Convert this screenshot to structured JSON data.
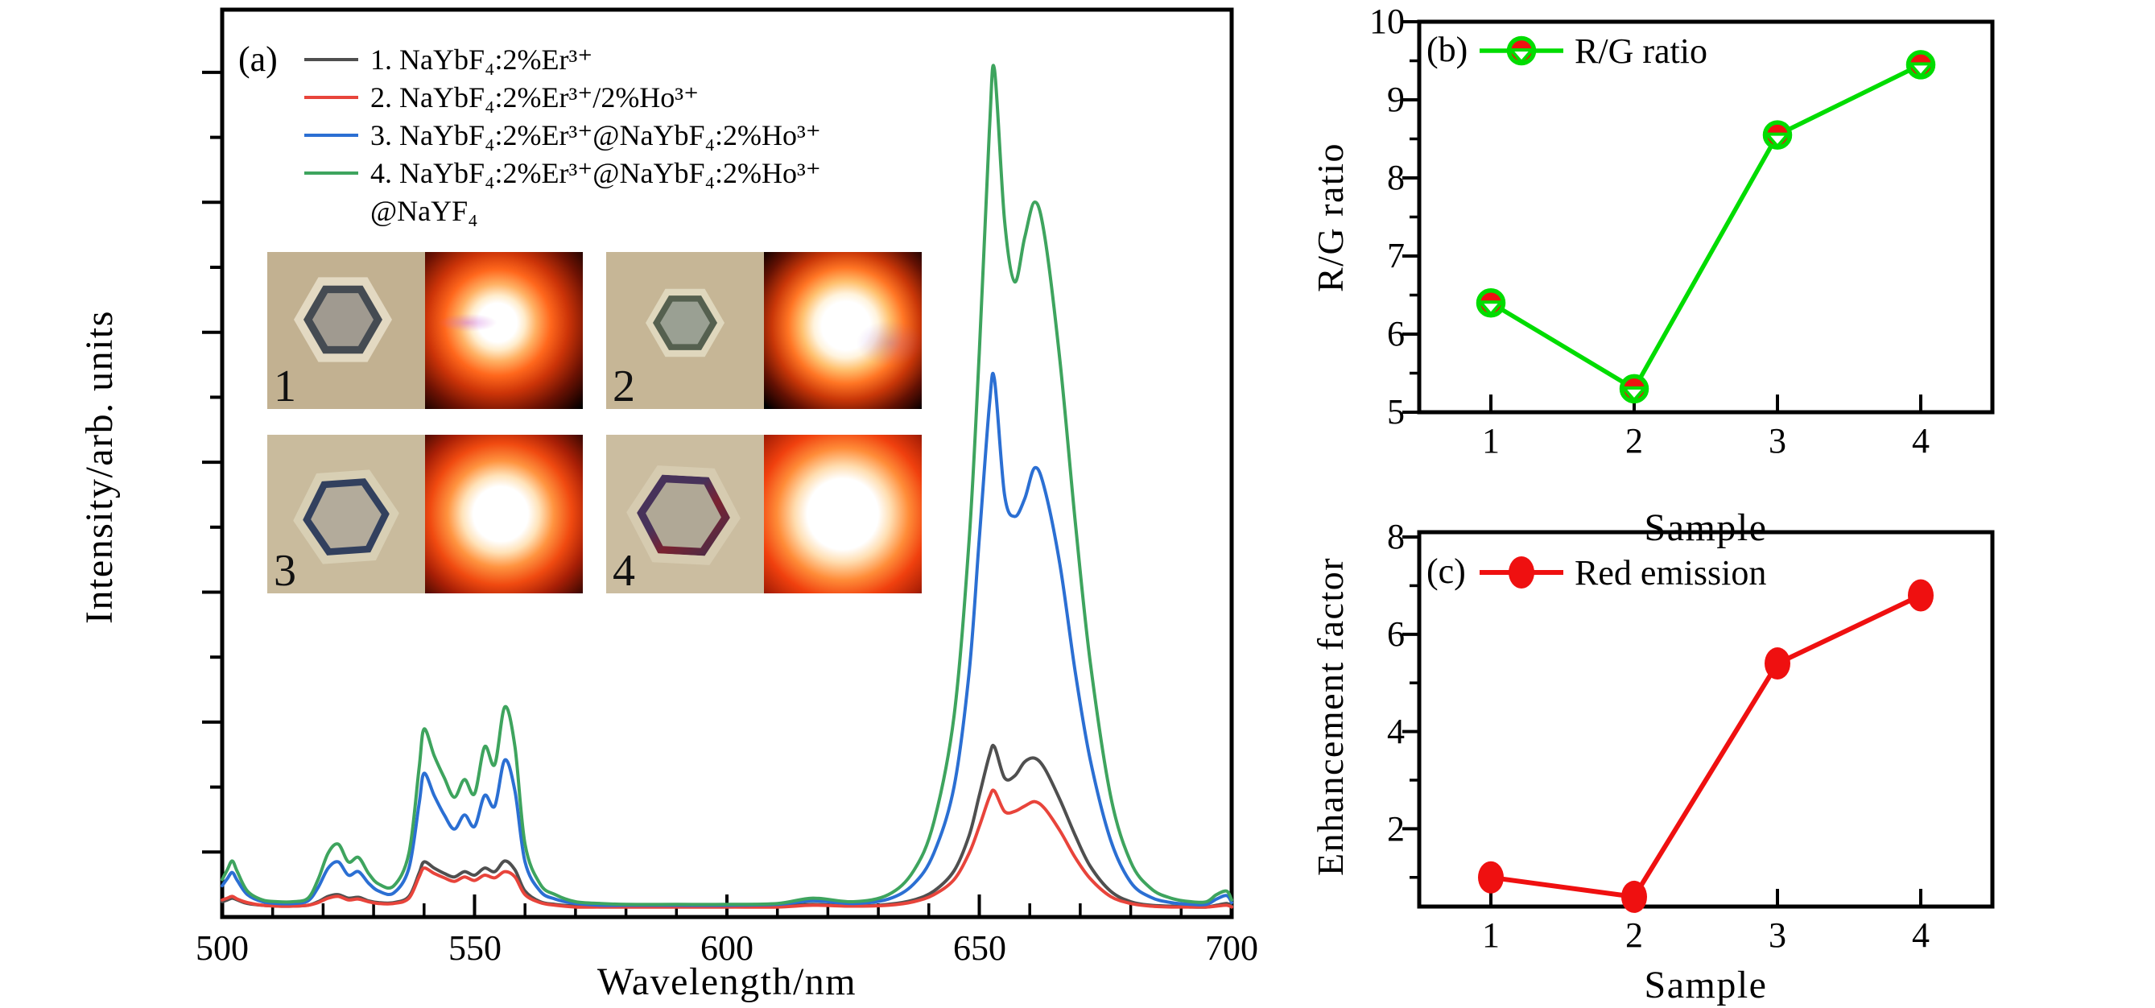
{
  "panel_a": {
    "tag": "(a)",
    "xlabel": "Wavelength/nm",
    "ylabel": "Intensity/arb. units",
    "xticks": [
      "500",
      "550",
      "600",
      "650",
      "700"
    ],
    "legend": [
      {
        "label": "1. NaYbF₄:2%Er³⁺",
        "color": "#4F4F4F"
      },
      {
        "label": "2. NaYbF₄:2%Er³⁺/2%Ho³⁺",
        "color": "#E8443B"
      },
      {
        "label": "3. NaYbF₄:2%Er³⁺@NaYbF₄:2%Ho³⁺",
        "color": "#2B6FD3"
      },
      {
        "label": "4. NaYbF₄:2%Er³⁺@NaYbF₄:2%Ho³⁺",
        "color": "#3EA45E"
      },
      {
        "label": "@NaYF₄",
        "color": null
      }
    ],
    "insets": [
      {
        "label": "1"
      },
      {
        "label": "2"
      },
      {
        "label": "3"
      },
      {
        "label": "4"
      }
    ]
  },
  "panel_b": {
    "tag": "(b)",
    "legend_label": "R/G ratio",
    "xlabel": "Sample",
    "ylabel": "R/G ratio",
    "yticks": [
      "10",
      "9",
      "8",
      "7",
      "6",
      "5"
    ],
    "xticks": [
      "1",
      "2",
      "3",
      "4"
    ]
  },
  "panel_c": {
    "tag": "(c)",
    "legend_label": "Red emission",
    "xlabel": "Sample",
    "ylabel": "Enhancement factor",
    "yticks": [
      "8",
      "6",
      "4",
      "2"
    ],
    "xticks": [
      "1",
      "2",
      "3",
      "4"
    ]
  },
  "chart_data": [
    {
      "id": "a",
      "type": "line",
      "title": "Upconversion emission spectra",
      "xlabel": "Wavelength/nm",
      "ylabel": "Intensity/arb. units",
      "xlim": [
        500,
        700
      ],
      "ylim": [
        0,
        1
      ],
      "xticks": [
        500,
        550,
        600,
        650,
        700
      ],
      "xminor_step": 10,
      "grid": false,
      "legend_position": "upper left",
      "x": [
        500,
        501,
        502,
        503,
        505,
        508,
        511,
        514,
        517,
        519,
        521,
        523,
        525,
        527,
        529,
        531,
        534,
        537,
        539,
        540,
        542,
        544,
        546,
        548,
        550,
        552,
        554,
        556,
        558,
        560,
        563,
        566,
        570,
        575,
        580,
        590,
        600,
        610,
        617,
        625,
        632,
        637,
        641,
        645,
        648,
        650,
        652,
        653,
        655,
        657,
        659,
        661,
        663,
        666,
        669,
        672,
        676,
        680,
        684,
        688,
        692,
        695,
        697,
        699,
        700
      ],
      "series": [
        {
          "name": "1. NaYbF₄:2%Er³⁺",
          "color": "#4F4F4F",
          "values": [
            0.01,
            0.012,
            0.014,
            0.012,
            0.008,
            0.006,
            0.005,
            0.005,
            0.006,
            0.01,
            0.016,
            0.018,
            0.014,
            0.015,
            0.011,
            0.009,
            0.009,
            0.016,
            0.042,
            0.055,
            0.048,
            0.042,
            0.038,
            0.044,
            0.04,
            0.048,
            0.044,
            0.056,
            0.046,
            0.022,
            0.01,
            0.007,
            0.005,
            0.004,
            0.004,
            0.004,
            0.004,
            0.005,
            0.007,
            0.005,
            0.007,
            0.012,
            0.022,
            0.045,
            0.085,
            0.13,
            0.175,
            0.185,
            0.15,
            0.152,
            0.168,
            0.172,
            0.16,
            0.125,
            0.085,
            0.05,
            0.022,
            0.01,
            0.006,
            0.005,
            0.004,
            0.004,
            0.006,
            0.008,
            0.005
          ]
        },
        {
          "name": "2. NaYbF₄:2%Er³⁺/2%Ho³⁺",
          "color": "#E8443B",
          "values": [
            0.012,
            0.014,
            0.016,
            0.013,
            0.009,
            0.006,
            0.005,
            0.005,
            0.006,
            0.009,
            0.014,
            0.016,
            0.012,
            0.013,
            0.01,
            0.008,
            0.008,
            0.014,
            0.038,
            0.048,
            0.042,
            0.037,
            0.033,
            0.038,
            0.034,
            0.04,
            0.037,
            0.044,
            0.038,
            0.018,
            0.009,
            0.006,
            0.004,
            0.004,
            0.004,
            0.004,
            0.004,
            0.004,
            0.006,
            0.005,
            0.006,
            0.01,
            0.018,
            0.035,
            0.065,
            0.095,
            0.128,
            0.135,
            0.112,
            0.112,
            0.118,
            0.123,
            0.115,
            0.09,
            0.06,
            0.036,
            0.016,
            0.008,
            0.005,
            0.004,
            0.004,
            0.004,
            0.005,
            0.006,
            0.004
          ]
        },
        {
          "name": "3. NaYbF₄:2%Er³⁺@NaYbF₄:2%Ho³⁺",
          "color": "#2B6FD3",
          "values": [
            0.028,
            0.036,
            0.043,
            0.034,
            0.018,
            0.01,
            0.008,
            0.008,
            0.011,
            0.026,
            0.048,
            0.055,
            0.04,
            0.044,
            0.031,
            0.022,
            0.02,
            0.048,
            0.12,
            0.155,
            0.13,
            0.108,
            0.092,
            0.108,
            0.095,
            0.13,
            0.118,
            0.17,
            0.135,
            0.055,
            0.022,
            0.013,
            0.008,
            0.006,
            0.006,
            0.006,
            0.006,
            0.007,
            0.011,
            0.008,
            0.013,
            0.03,
            0.065,
            0.14,
            0.27,
            0.42,
            0.57,
            0.6,
            0.47,
            0.445,
            0.465,
            0.5,
            0.475,
            0.39,
            0.27,
            0.17,
            0.08,
            0.032,
            0.015,
            0.009,
            0.007,
            0.007,
            0.013,
            0.017,
            0.009
          ]
        },
        {
          "name": "4. NaYbF₄:2%Er³⁺@NaYbF₄:2%Ho³⁺@NaYF₄",
          "color": "#3EA45E",
          "values": [
            0.035,
            0.046,
            0.056,
            0.044,
            0.022,
            0.012,
            0.01,
            0.01,
            0.014,
            0.035,
            0.065,
            0.075,
            0.055,
            0.06,
            0.042,
            0.03,
            0.028,
            0.065,
            0.16,
            0.205,
            0.175,
            0.15,
            0.128,
            0.148,
            0.132,
            0.185,
            0.165,
            0.23,
            0.185,
            0.075,
            0.03,
            0.018,
            0.01,
            0.008,
            0.007,
            0.007,
            0.007,
            0.008,
            0.014,
            0.01,
            0.018,
            0.045,
            0.1,
            0.22,
            0.42,
            0.63,
            0.88,
            0.95,
            0.78,
            0.71,
            0.76,
            0.8,
            0.76,
            0.62,
            0.44,
            0.28,
            0.13,
            0.055,
            0.025,
            0.014,
            0.01,
            0.01,
            0.018,
            0.022,
            0.012
          ]
        }
      ]
    },
    {
      "id": "b",
      "type": "line",
      "title": "R/G ratio vs sample",
      "xlabel": "Sample",
      "ylabel": "R/G ratio",
      "categories": [
        1,
        2,
        3,
        4
      ],
      "values": [
        6.4,
        5.3,
        8.55,
        9.45
      ],
      "xlim": [
        0.5,
        4.5
      ],
      "ylim": [
        5,
        10
      ],
      "yticks": [
        5,
        6,
        7,
        8,
        9,
        10
      ],
      "yminor": [
        5.5,
        6.5,
        7.5,
        8.5,
        9.5
      ],
      "xticks": [
        1,
        2,
        3,
        4
      ],
      "grid": false,
      "legend": "R/G ratio",
      "legend_position": "upper left",
      "line_color": "#00DC00",
      "marker": "red-filled-circle + green-open-circle + white-down-triangle",
      "marker_fill": "#EE1111",
      "marker_edge": "#00DC00"
    },
    {
      "id": "c",
      "type": "line",
      "title": "Red emission enhancement vs sample",
      "xlabel": "Sample",
      "ylabel": "Enhancement factor",
      "categories": [
        1,
        2,
        3,
        4
      ],
      "values": [
        1.0,
        0.6,
        5.4,
        6.8
      ],
      "xlim": [
        0.5,
        4.5
      ],
      "ylim": [
        0.4,
        8.1
      ],
      "yticks": [
        2,
        4,
        6,
        8
      ],
      "yminor": [
        1,
        3,
        5,
        7
      ],
      "xticks": [
        1,
        2,
        3,
        4
      ],
      "grid": false,
      "legend": "Red emission",
      "legend_position": "upper left",
      "line_color": "#EF1010",
      "marker": "circle",
      "marker_fill": "#EF1010"
    }
  ]
}
